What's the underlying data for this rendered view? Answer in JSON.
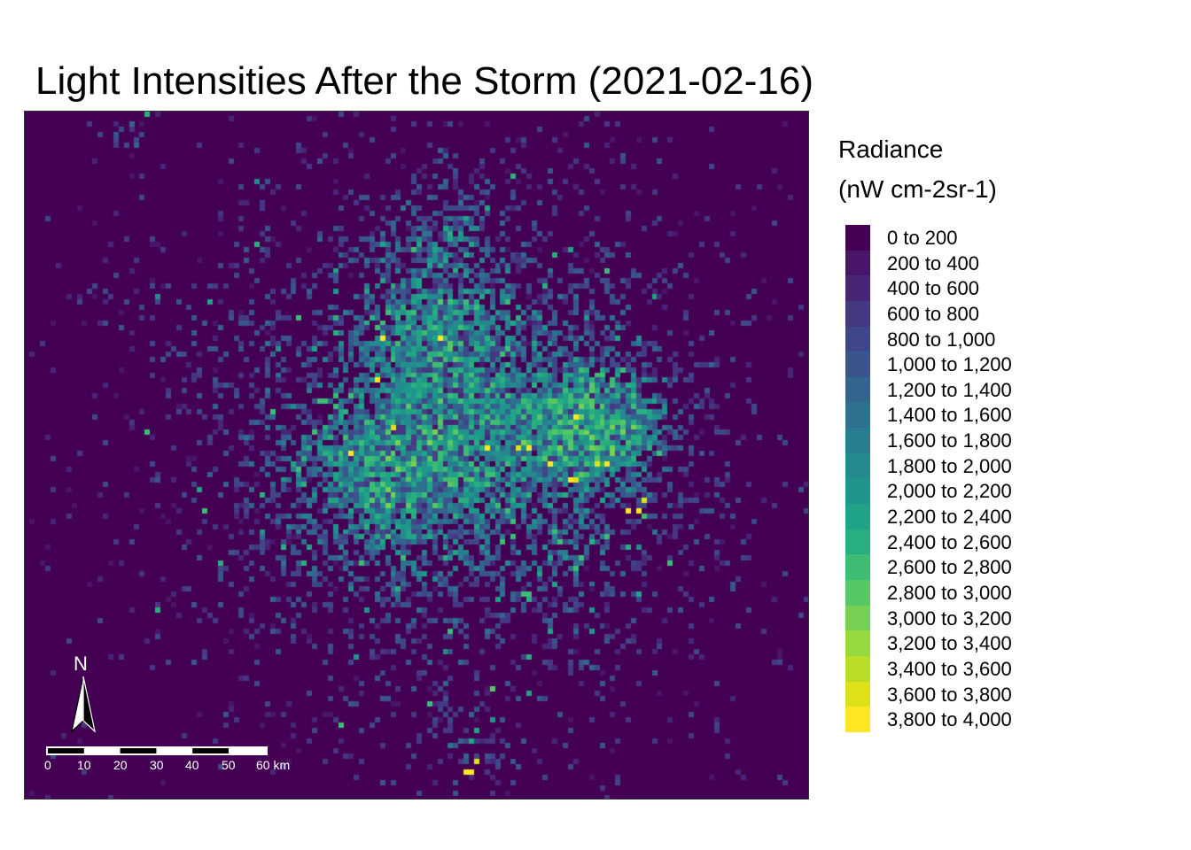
{
  "title": "Light Intensities After the Storm (2021-02-16)",
  "legend": {
    "title_line1": "Radiance",
    "title_line2": "(nW cm-2sr-1)",
    "classes": [
      {
        "label": "0 to 200",
        "color": "#440154"
      },
      {
        "label": "200 to 400",
        "color": "#481568"
      },
      {
        "label": "400 to 600",
        "color": "#482677"
      },
      {
        "label": "600 to 800",
        "color": "#453781"
      },
      {
        "label": "800 to 1,000",
        "color": "#3f4788"
      },
      {
        "label": "1,000 to 1,200",
        "color": "#39558c"
      },
      {
        "label": "1,200 to 1,400",
        "color": "#32648e"
      },
      {
        "label": "1,400 to 1,600",
        "color": "#2d718e"
      },
      {
        "label": "1,600 to 1,800",
        "color": "#287d8e"
      },
      {
        "label": "1,800 to 2,000",
        "color": "#238a8d"
      },
      {
        "label": "2,000 to 2,200",
        "color": "#1f968b"
      },
      {
        "label": "2,200 to 2,400",
        "color": "#20a386"
      },
      {
        "label": "2,400 to 2,600",
        "color": "#29af7f"
      },
      {
        "label": "2,600 to 2,800",
        "color": "#3dbc74"
      },
      {
        "label": "2,800 to 3,000",
        "color": "#56c667"
      },
      {
        "label": "3,000 to 3,200",
        "color": "#75d054"
      },
      {
        "label": "3,200 to 3,400",
        "color": "#95d840"
      },
      {
        "label": "3,400 to 3,600",
        "color": "#bade28"
      },
      {
        "label": "3,600 to 3,800",
        "color": "#dde318"
      },
      {
        "label": "3,800 to 4,000",
        "color": "#fde725"
      }
    ]
  },
  "north_arrow": {
    "letter": "N"
  },
  "scale_bar": {
    "tick_labels": [
      "0",
      "10",
      "20",
      "30",
      "40",
      "50",
      "60 km"
    ]
  }
}
